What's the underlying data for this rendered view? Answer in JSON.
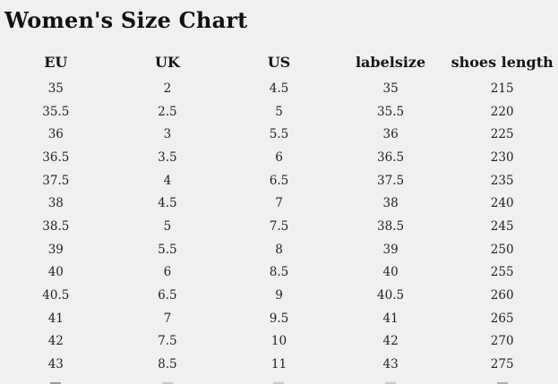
{
  "title": "Women's Size Chart",
  "colors": {
    "background": "#f1f0ee",
    "title_text": "#111111",
    "body_text": "#1e1e1e"
  },
  "chart_data": {
    "type": "table",
    "title": "Women's Size Chart",
    "columns": [
      "EU",
      "UK",
      "US",
      "labelsize",
      "shoes length"
    ],
    "rows": [
      [
        "35",
        "2",
        "4.5",
        "35",
        "215"
      ],
      [
        "35.5",
        "2.5",
        "5",
        "35.5",
        "220"
      ],
      [
        "36",
        "3",
        "5.5",
        "36",
        "225"
      ],
      [
        "36.5",
        "3.5",
        "6",
        "36.5",
        "230"
      ],
      [
        "37.5",
        "4",
        "6.5",
        "37.5",
        "235"
      ],
      [
        "38",
        "4.5",
        "7",
        "38",
        "240"
      ],
      [
        "38.5",
        "5",
        "7.5",
        "38.5",
        "245"
      ],
      [
        "39",
        "5.5",
        "8",
        "39",
        "250"
      ],
      [
        "40",
        "6",
        "8.5",
        "40",
        "255"
      ],
      [
        "40.5",
        "6.5",
        "9",
        "40.5",
        "260"
      ],
      [
        "41",
        "7",
        "9.5",
        "41",
        "265"
      ],
      [
        "42",
        "7.5",
        "10",
        "42",
        "270"
      ],
      [
        "43",
        "8.5",
        "11",
        "43",
        "275"
      ]
    ]
  }
}
